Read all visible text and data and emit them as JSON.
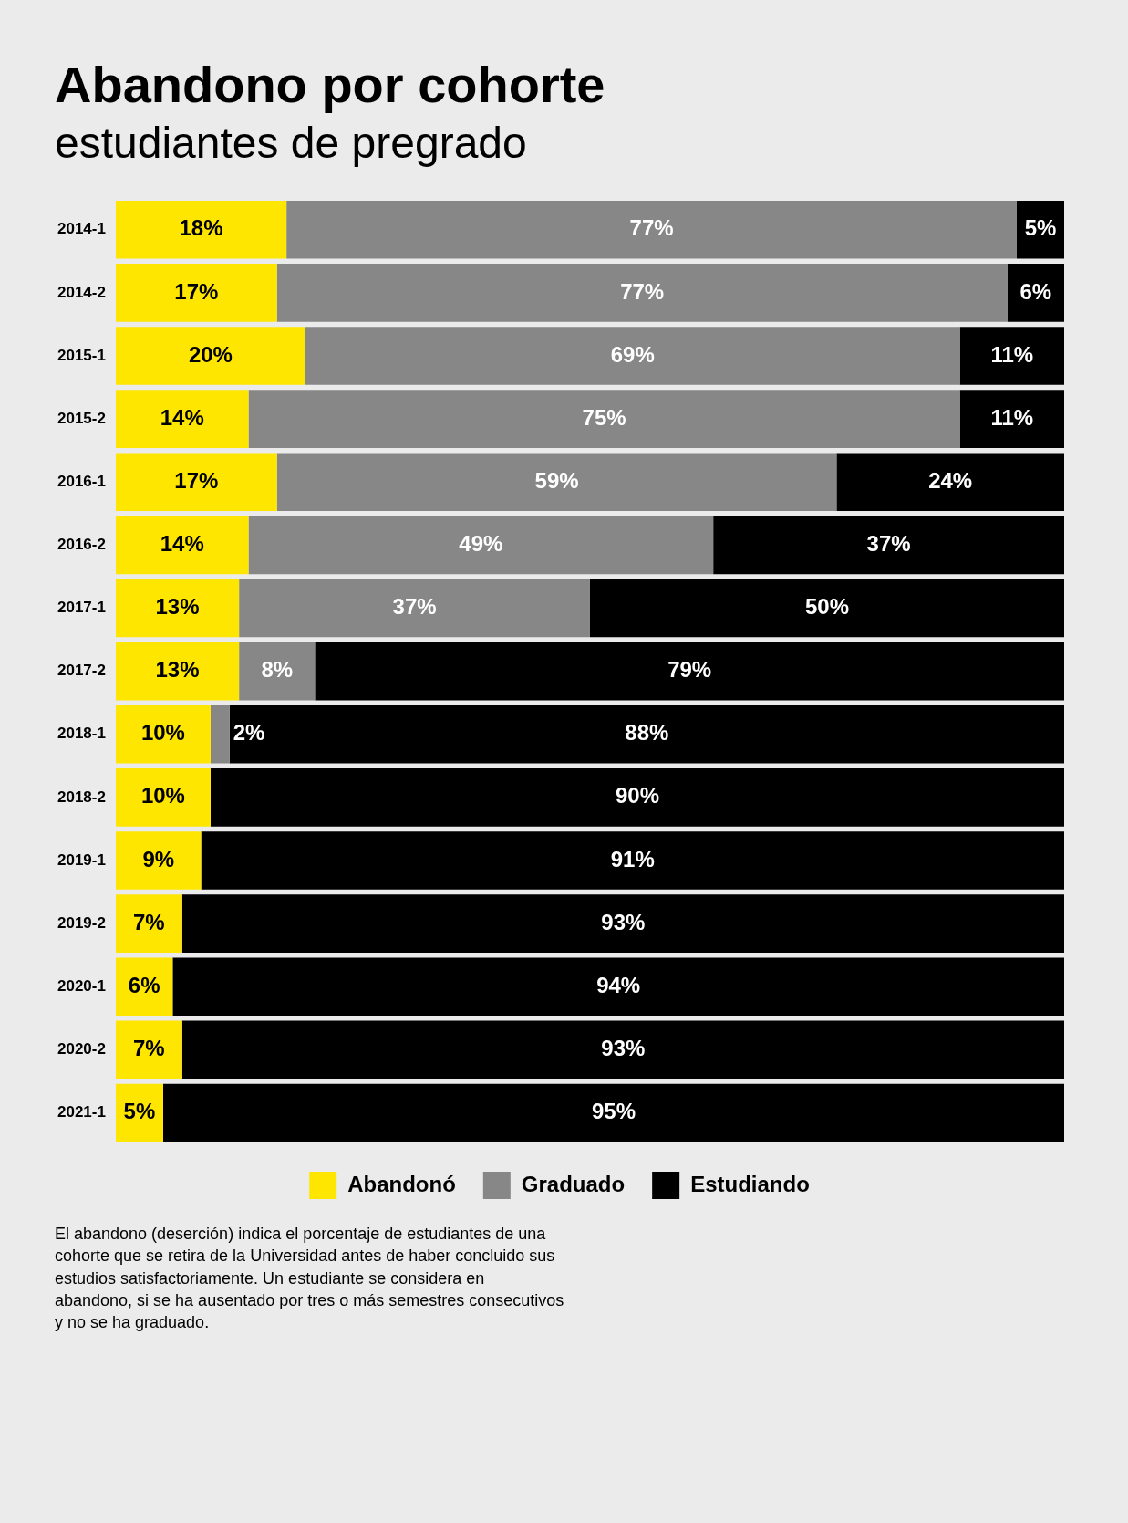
{
  "chart_data": {
    "type": "bar",
    "title": "Abandono por cohorte",
    "subtitle": "estudiantes de pregrado",
    "categories": [
      "2014-1",
      "2014-2",
      "2015-1",
      "2015-2",
      "2016-1",
      "2016-2",
      "2017-1",
      "2017-2",
      "2018-1",
      "2018-2",
      "2019-1",
      "2019-2",
      "2020-1",
      "2020-2",
      "2021-1"
    ],
    "orientation": "horizontal",
    "stacked": true,
    "tick_labels": "y",
    "grid": false,
    "legend": "bottom",
    "series": [
      {
        "name": "Abandonó",
        "color": "#ffe600",
        "values": [
          18,
          17,
          20,
          14,
          17,
          14,
          13,
          13,
          10,
          10,
          9,
          7,
          6,
          7,
          5
        ],
        "value_labels": [
          "18%",
          "17%",
          "20%",
          "14%",
          "17%",
          "14%",
          "13%",
          "13%",
          "10%",
          "10%",
          "9%",
          "7%",
          "6%",
          "7%",
          "5%"
        ]
      },
      {
        "name": "Graduado",
        "color": "#878787",
        "values": [
          77,
          77,
          69,
          75,
          59,
          49,
          37,
          8,
          2,
          null,
          null,
          null,
          null,
          null,
          null
        ],
        "value_labels": [
          "77%",
          "77%",
          "69%",
          "75%",
          "59%",
          "49%",
          "37%",
          "8%",
          "2%",
          null,
          null,
          null,
          null,
          null,
          null
        ]
      },
      {
        "name": "Estudiando",
        "color": "#000000",
        "values": [
          5,
          6,
          11,
          11,
          24,
          37,
          50,
          79,
          88,
          90,
          91,
          93,
          94,
          93,
          95
        ],
        "value_labels": [
          "5%",
          "6%",
          "11%",
          "11%",
          "24%",
          "37%",
          "50%",
          "79%",
          "88%",
          "90%",
          "91%",
          "93%",
          "94%",
          "93%",
          "95%"
        ]
      }
    ],
    "annotations": [
      "El abandono (deserción) indica el porcentaje de estudiantes de una cohorte que se retira de la Universidad antes de haber concluido sus estudios satisfactoriamente. Un estudiante se considera en abandono, si se ha ausentado por tres o más semestres consecutivos y no se ha graduado."
    ]
  }
}
